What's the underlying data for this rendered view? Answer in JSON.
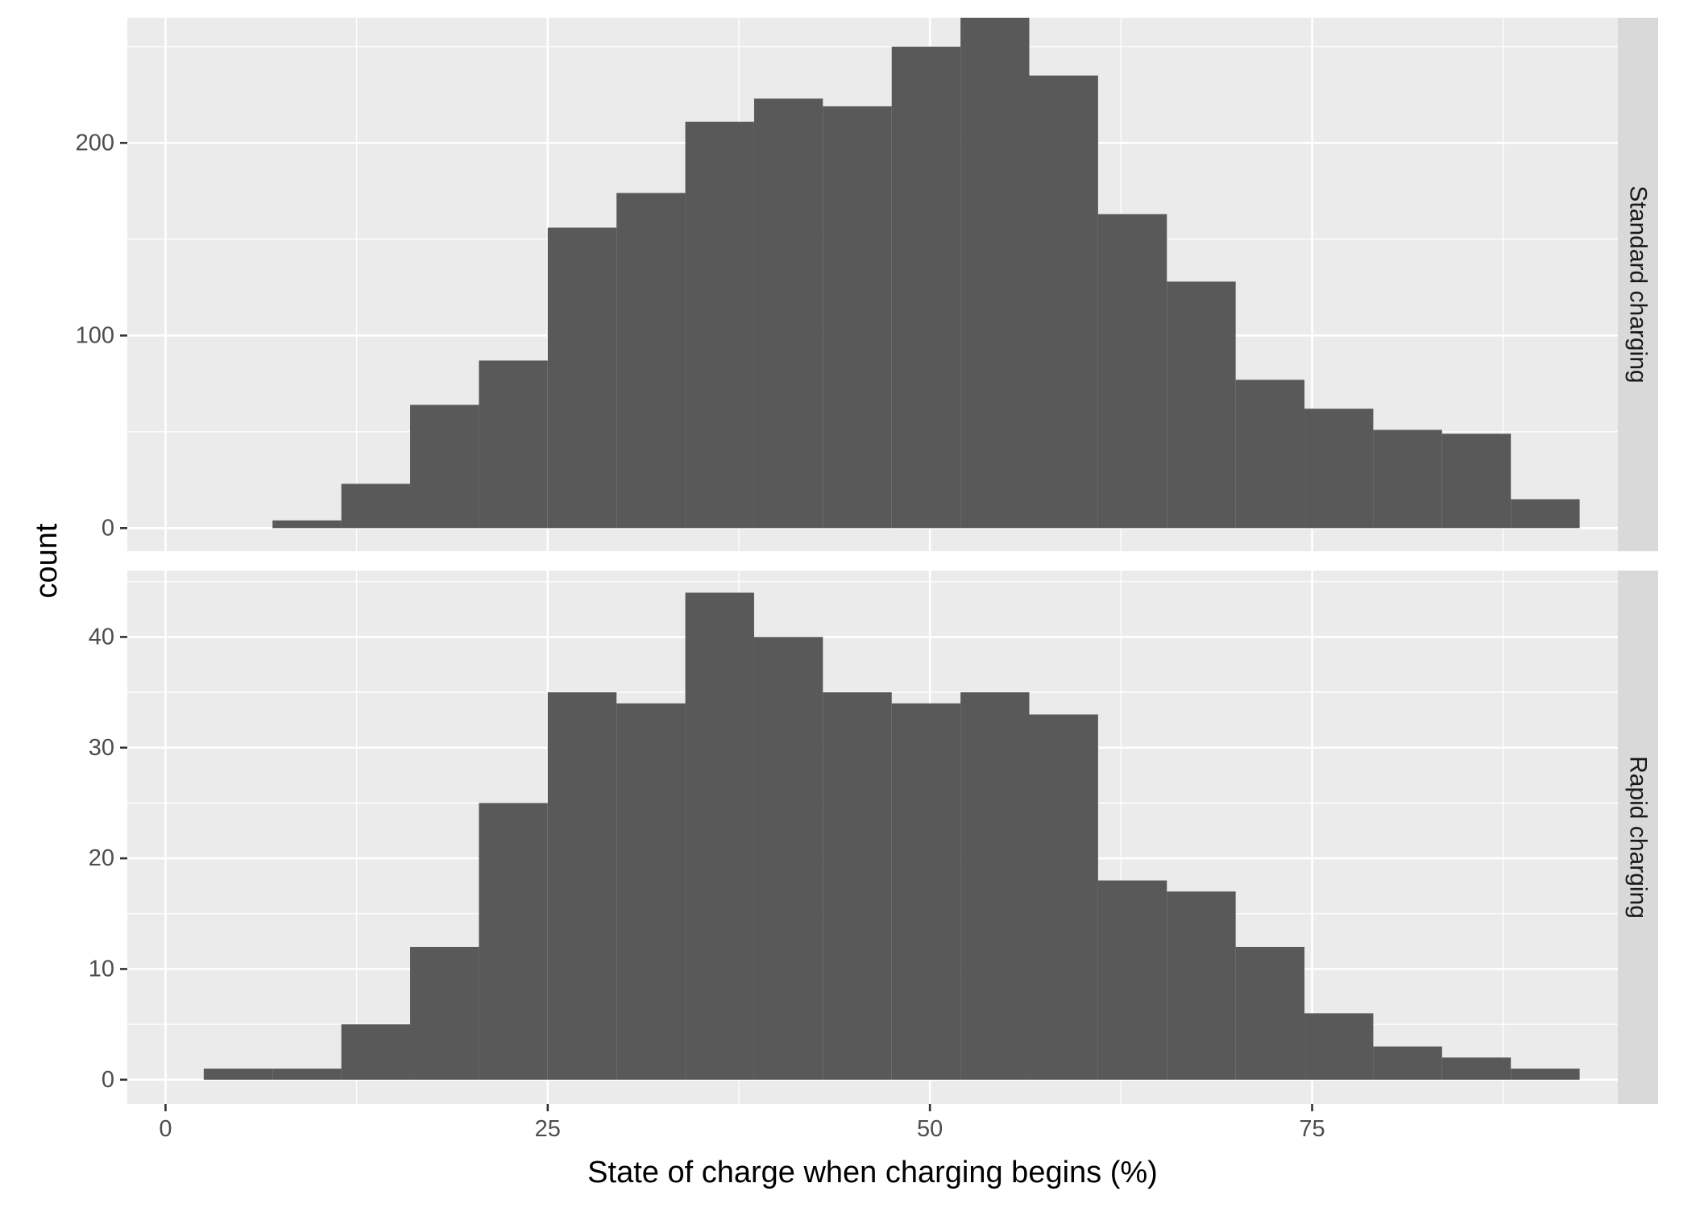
{
  "chart_data": {
    "type": "histogram",
    "xlabel": "State of charge when charging begins (%)",
    "ylabel": "count",
    "xlim": [
      -2.5,
      95
    ],
    "x_ticks": [
      0,
      25,
      50,
      75
    ],
    "grid": true,
    "bin_width": 4.5,
    "bin_start": 2.5,
    "panels": [
      {
        "name": "Standard charging",
        "ylim": [
          -12,
          265
        ],
        "y_ticks": [
          0,
          100,
          200
        ],
        "values": [
          0,
          4,
          23,
          64,
          87,
          156,
          174,
          211,
          223,
          219,
          250,
          265,
          235,
          163,
          128,
          77,
          62,
          51,
          49,
          15
        ]
      },
      {
        "name": "Rapid charging",
        "ylim": [
          -2.2,
          46
        ],
        "y_ticks": [
          0,
          10,
          20,
          30,
          40
        ],
        "values": [
          1,
          1,
          5,
          12,
          25,
          35,
          34,
          44,
          40,
          35,
          34,
          35,
          33,
          18,
          17,
          12,
          6,
          3,
          2,
          1
        ]
      }
    ]
  }
}
